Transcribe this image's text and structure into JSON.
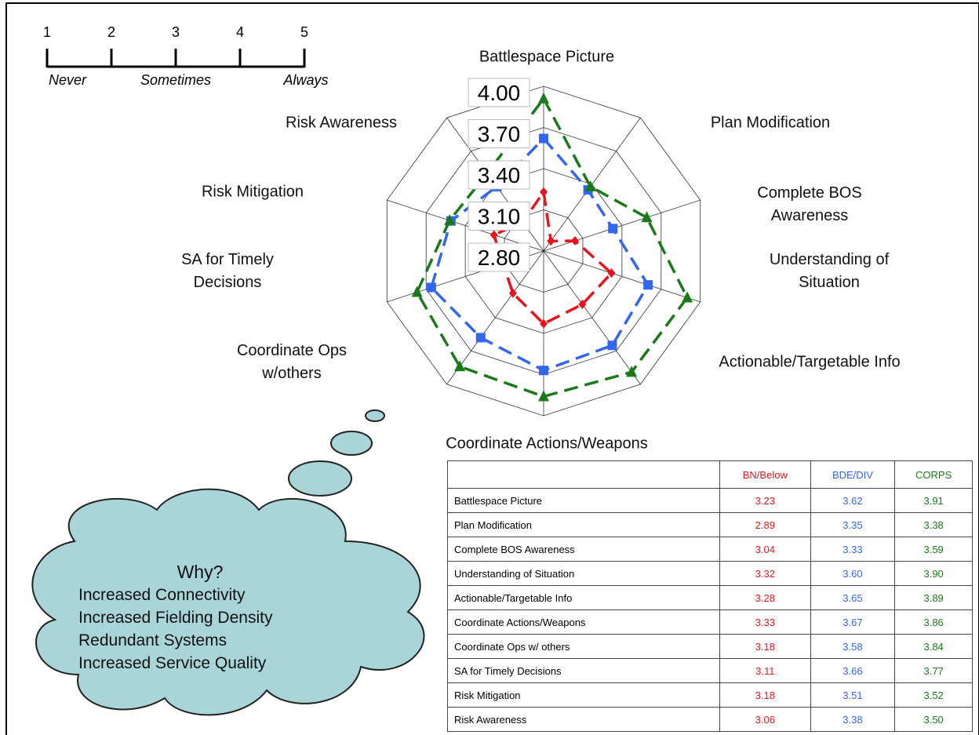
{
  "chart_data": {
    "type": "radar",
    "categories": [
      "Battlespace Picture",
      "Plan Modification",
      "Complete BOS Awareness",
      "Understanding of Situation",
      "Actionable/Targetable Info",
      "Coordinate Actions/Weapons",
      "Coordinate Ops w/others",
      "SA for Timely Decisions",
      "Risk Mitigation",
      "Risk Awareness"
    ],
    "series": [
      {
        "name": "BN/Below",
        "color": "#e8141c",
        "marker": "diamond",
        "values": [
          3.23,
          2.89,
          3.04,
          3.32,
          3.28,
          3.33,
          3.18,
          3.11,
          3.18,
          3.06
        ],
        "value_labels": [
          "3.23",
          "2.89",
          "3.04",
          "3.32",
          "3.28",
          "3.33",
          "3.18",
          "3.11",
          "3.18",
          "3.06"
        ]
      },
      {
        "name": "BDE/DIV",
        "color": "#3366ee",
        "marker": "square",
        "values": [
          3.62,
          3.35,
          3.33,
          3.6,
          3.65,
          3.67,
          3.58,
          3.66,
          3.51,
          3.38
        ],
        "value_labels": [
          "3.62",
          "3.35",
          "3.33",
          "3.60",
          "3.65",
          "3.67",
          "3.58",
          "3.66",
          "3.51",
          "3.38"
        ]
      },
      {
        "name": "CORPS",
        "color": "#1a7a1a",
        "marker": "triangle",
        "values": [
          3.91,
          3.38,
          3.59,
          3.9,
          3.89,
          3.86,
          3.84,
          3.77,
          3.52,
          3.5
        ],
        "value_labels": [
          "3.91",
          "3.38",
          "3.59",
          "3.90",
          "3.89",
          "3.86",
          "3.84",
          "3.77",
          "3.52",
          "3.50"
        ]
      }
    ],
    "rlim": [
      2.8,
      4
    ],
    "rticks": [
      {
        "value": 2.8,
        "label": "2.80"
      },
      {
        "value": 3.1,
        "label": "3.10"
      },
      {
        "value": 3.4,
        "label": "3.40"
      },
      {
        "value": 3.7,
        "label": "3.70"
      },
      {
        "value": 4,
        "label": "4.00"
      }
    ],
    "grid": true
  },
  "table": {
    "row_labels": [
      "Battlespace Picture",
      "Plan Modification",
      "Complete BOS Awareness",
      "Understanding of Situation",
      "Actionable/Targetable Info",
      "Coordinate Actions/Weapons",
      "Coordinate Ops w/ others",
      "SA for Timely Decisions",
      "Risk Mitigation",
      "Risk Awareness"
    ]
  },
  "scale": {
    "ticks": [
      1,
      2,
      3,
      4,
      5
    ],
    "labels": [
      "Never",
      "Sometimes",
      "Always"
    ]
  },
  "cloud": {
    "title": "Why?",
    "lines": [
      "Increased Connectivity",
      "Increased Fielding Density",
      "Redundant Systems",
      "Increased Service Quality"
    ]
  }
}
